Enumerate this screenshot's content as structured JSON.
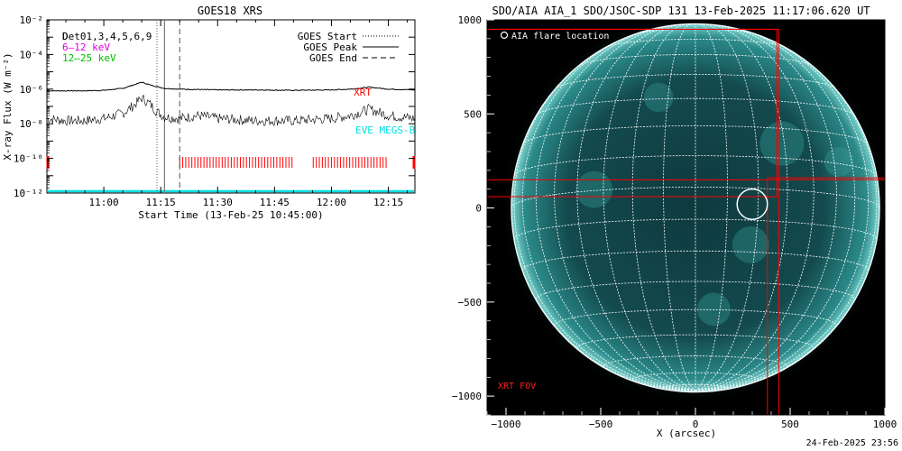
{
  "goes_panel": {
    "title": "GOES18 XRS",
    "ylabel": "X-ray Flux (W m⁻²)",
    "xlabel": "Start Time (13-Feb-25 10:45:00)",
    "det_label": "Det01,3,4,5,6,9",
    "det_overlap": "D",
    "rhessi_bands": [
      {
        "label": "6–12 keV",
        "color": "#e000e0"
      },
      {
        "label": "12–25 keV",
        "color": "#00c000"
      }
    ],
    "legend": [
      {
        "label": "GOES Start",
        "style": "dotted"
      },
      {
        "label": "GOES Peak",
        "style": "solid"
      },
      {
        "label": "GOES End",
        "style": "dashed"
      }
    ],
    "xrt_label": "XRT",
    "eve_label": "EVE MEGS-B",
    "colors": {
      "xrt": "#ff0000",
      "eve": "#00e0e0",
      "curves": "#000000"
    }
  },
  "aia_panel": {
    "title": "SDO/AIA AIA_1 SDO/JSOC-SDP 131 13-Feb-2025 11:17:06.620 UT",
    "xlabel": "X (arcsec)",
    "flare_legend": "AIA flare location",
    "fov_label": "XRT FOV",
    "footer": "24-Feb-2025 23:56",
    "colors": {
      "disk": "#1d6a6a",
      "grid": "#ffffff",
      "fov": "#ff0000"
    }
  },
  "chart_data": [
    {
      "type": "line",
      "title": "GOES18 XRS",
      "xlabel": "Start Time (13-Feb-25 10:45:00)",
      "ylabel": "X-ray Flux (W m⁻²)",
      "y_scale": "log",
      "ylim": [
        1e-12,
        0.01
      ],
      "xlim": [
        "10:45",
        "12:22"
      ],
      "x_ticks": [
        "11:00",
        "11:15",
        "11:30",
        "11:45",
        "12:00",
        "12:15"
      ],
      "y_ticks": [
        "10⁻¹²",
        "10⁻¹⁰",
        "10⁻⁸",
        "10⁻⁶",
        "10⁻⁴",
        "10⁻²"
      ],
      "events": {
        "goes_start": "11:14",
        "goes_peak": "11:16",
        "goes_end": "11:20"
      },
      "series": [
        {
          "name": "GOES long channel",
          "x": [
            "10:45",
            "10:55",
            "11:00",
            "11:05",
            "11:08",
            "11:10",
            "11:12",
            "11:14",
            "11:16",
            "11:20",
            "11:30",
            "11:40",
            "11:50",
            "12:00",
            "12:05",
            "12:10",
            "12:15",
            "12:22"
          ],
          "values": [
            8e-07,
            8e-07,
            8.5e-07,
            1.1e-06,
            1.8e-06,
            2.5e-06,
            1.8e-06,
            1.4e-06,
            1.1e-06,
            1e-06,
            9e-07,
            9e-07,
            8.5e-07,
            9e-07,
            1e-06,
            1.3e-06,
            1e-06,
            9e-07
          ]
        },
        {
          "name": "GOES short channel",
          "x": [
            "10:45",
            "10:50",
            "10:55",
            "11:00",
            "11:05",
            "11:08",
            "11:10",
            "11:12",
            "11:14",
            "11:16",
            "11:20",
            "11:25",
            "11:30",
            "11:40",
            "11:50",
            "12:00",
            "12:05",
            "12:10",
            "12:15",
            "12:22"
          ],
          "values": [
            2e-08,
            1.5e-08,
            1.5e-08,
            2e-08,
            4e-08,
            1.2e-07,
            3e-07,
            1.5e-07,
            5e-08,
            2.5e-08,
            2e-08,
            3e-08,
            2e-08,
            1.5e-08,
            1.5e-08,
            2e-08,
            3e-08,
            7e-08,
            3e-08,
            2e-08
          ]
        }
      ],
      "xrt_coverage": [
        [
          "11:20",
          "12:15"
        ]
      ],
      "xrt_gaps": [
        [
          "11:50",
          "11:55"
        ]
      ]
    },
    {
      "type": "scatter",
      "title": "SDO/AIA AIA_1 SDO/JSOC-SDP 131 13-Feb-2025 11:17:06.620 UT",
      "xlabel": "X (arcsec)",
      "ylabel": "",
      "xlim": [
        -1100,
        1000
      ],
      "ylim": [
        -1100,
        1000
      ],
      "x_ticks": [
        -1000,
        -500,
        0,
        500,
        1000
      ],
      "y_ticks": [
        -1000,
        -500,
        0,
        500,
        1000
      ],
      "solar_radius_arcsec": 972,
      "flare_location": {
        "x": 300,
        "y": 20,
        "radius": 80
      },
      "xrt_fov": [
        {
          "x0": -1100,
          "x1": 440,
          "y0": -1100,
          "y1": 950
        },
        {
          "x0": -1100,
          "x1": 1000,
          "y0": -1100,
          "y1": 150
        },
        {
          "x0": 380,
          "x1": 1000,
          "y0": -1100,
          "y1": 160
        },
        {
          "x0": -1100,
          "x1": 430,
          "y0": 60,
          "y1": 950
        }
      ]
    }
  ]
}
